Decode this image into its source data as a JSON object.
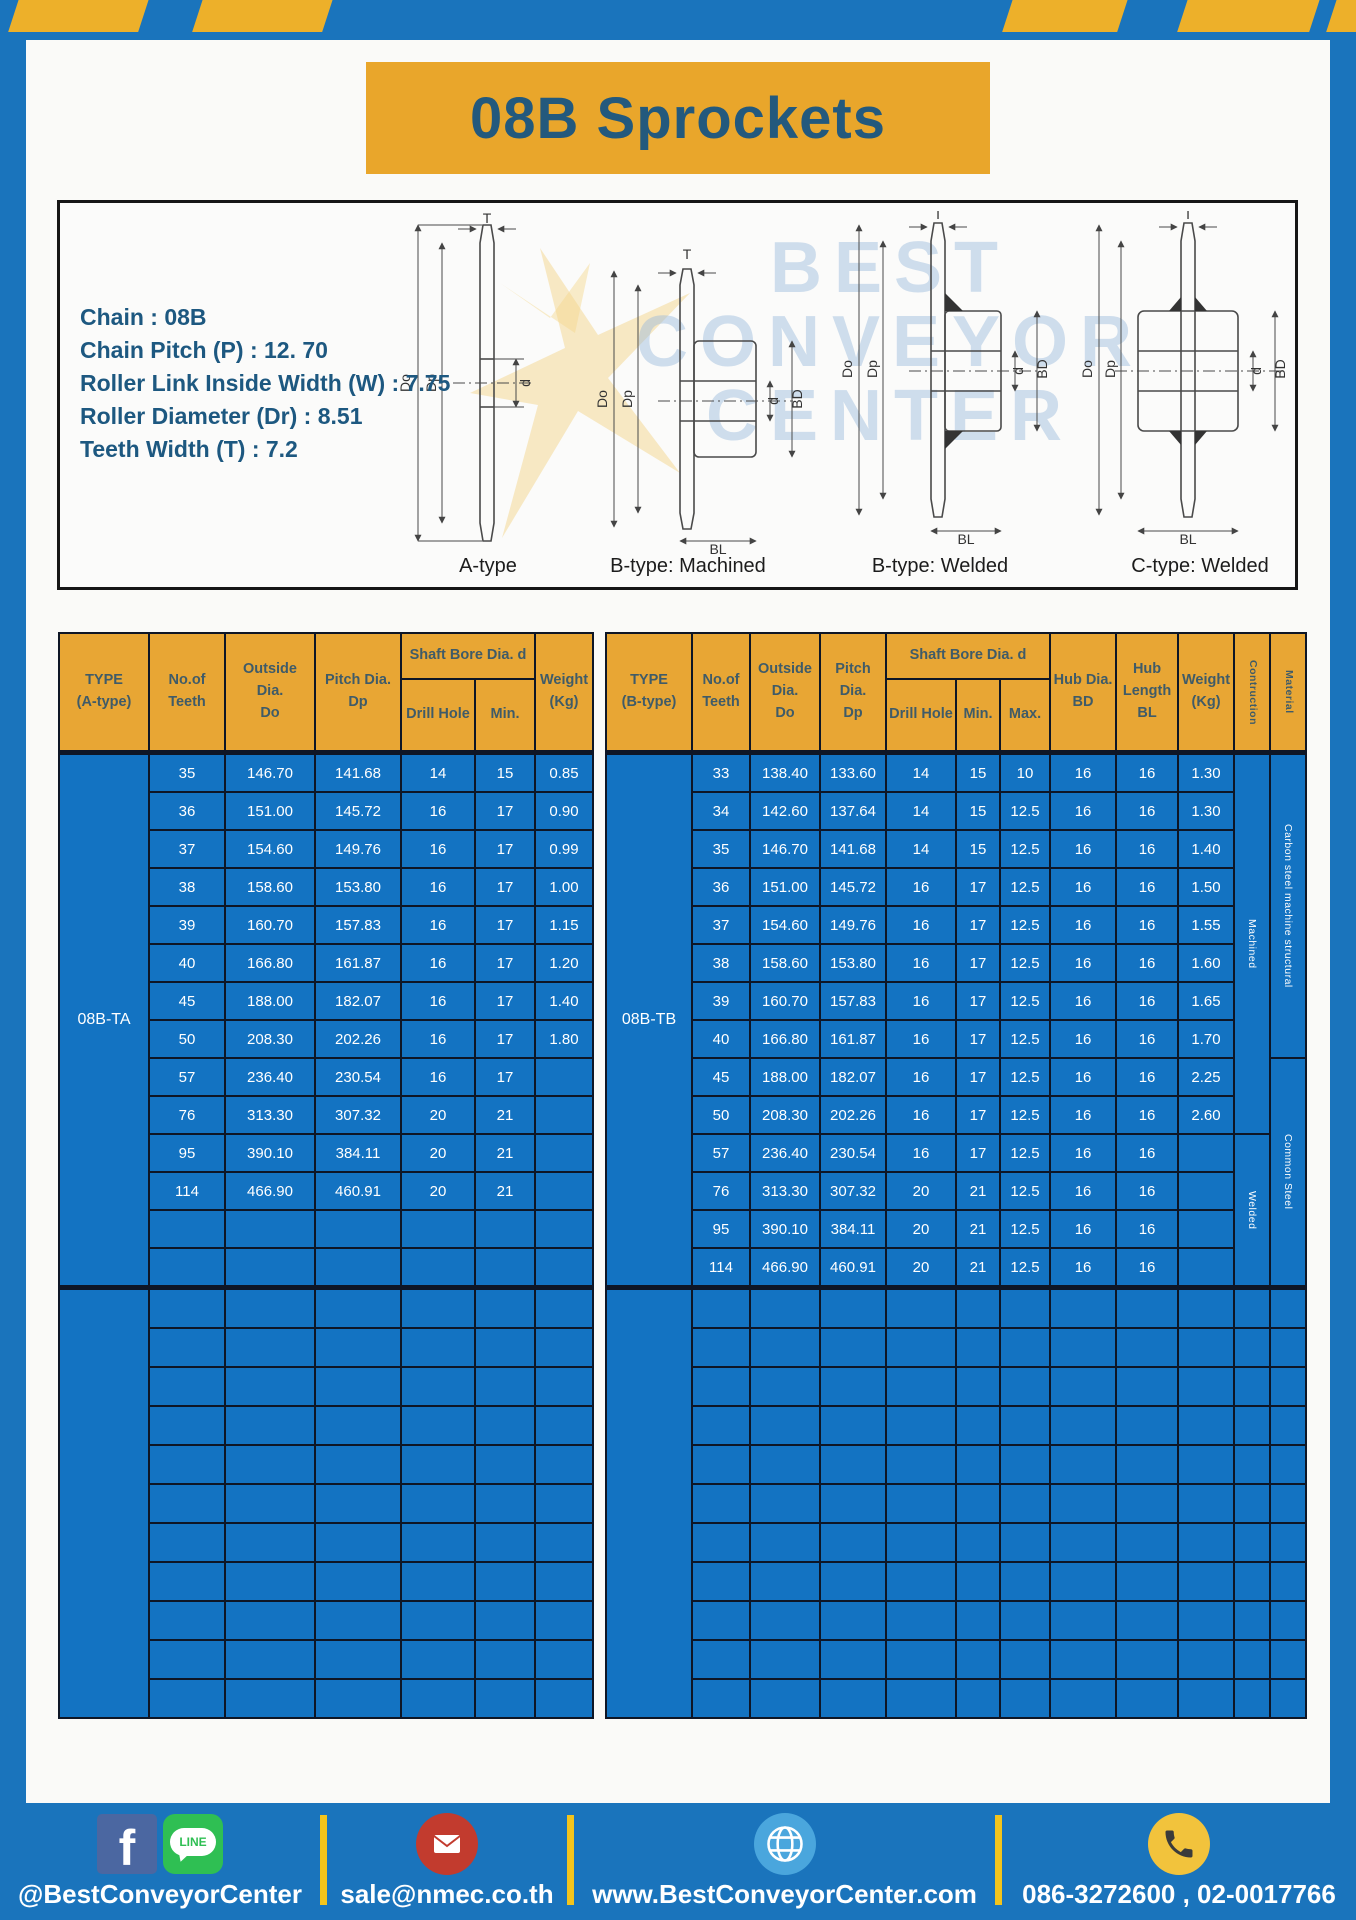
{
  "page": {
    "title": "08B Sprockets"
  },
  "colors": {
    "page_blue": "#1a74bc",
    "stripe_yellow": "#edb02a",
    "title_bg": "#e9a62b",
    "title_text": "#23597d",
    "table_header_bg": "#e8a634",
    "table_header_text": "#3f5b68",
    "table_cell_blue": "#1373c2",
    "table_border": "#0e1626",
    "footer_text": "#ffffff"
  },
  "specs": {
    "lines": [
      "Chain : 08B",
      "Chain Pitch (P) : 12. 70",
      "Roller Link Inside Width (W) : 7.75",
      "Roller Diameter (Dr) : 8.51",
      "Teeth Width (T) : 7.2"
    ]
  },
  "watermark": {
    "line1": "BEST",
    "line2": "CONVEYOR",
    "line3": "CENTER"
  },
  "dims": {
    "T": "T",
    "Do": "Do",
    "Dp": "Dp",
    "d": "d",
    "BD": "BD",
    "BL": "BL"
  },
  "diagrams": {
    "captions": [
      "A-type",
      "B-type: Machined",
      "B-type: Welded",
      "C-type: Welded"
    ]
  },
  "table_a": {
    "headers": {
      "type": "TYPE\n(A-type)",
      "teeth": "No.of\nTeeth",
      "outside": "Outside\nDia.\nDo",
      "pitch": "Pitch Dia.\nDp",
      "shaft": "Shaft Bore Dia. d",
      "drill": "Drill Hole",
      "min": "Min.",
      "weight": "Weight\n(Kg)"
    },
    "type_label": "08B-TA",
    "rows": [
      [
        "35",
        "146.70",
        "141.68",
        "14",
        "15",
        "0.85"
      ],
      [
        "36",
        "151.00",
        "145.72",
        "16",
        "17",
        "0.90"
      ],
      [
        "37",
        "154.60",
        "149.76",
        "16",
        "17",
        "0.99"
      ],
      [
        "38",
        "158.60",
        "153.80",
        "16",
        "17",
        "1.00"
      ],
      [
        "39",
        "160.70",
        "157.83",
        "16",
        "17",
        "1.15"
      ],
      [
        "40",
        "166.80",
        "161.87",
        "16",
        "17",
        "1.20"
      ],
      [
        "45",
        "188.00",
        "182.07",
        "16",
        "17",
        "1.40"
      ],
      [
        "50",
        "208.30",
        "202.26",
        "16",
        "17",
        "1.80"
      ],
      [
        "57",
        "236.40",
        "230.54",
        "16",
        "17",
        ""
      ],
      [
        "76",
        "313.30",
        "307.32",
        "20",
        "21",
        ""
      ],
      [
        "95",
        "390.10",
        "384.11",
        "20",
        "21",
        ""
      ],
      [
        "114",
        "466.90",
        "460.91",
        "20",
        "21",
        ""
      ],
      [
        "",
        "",
        "",
        "",
        "",
        ""
      ],
      [
        "",
        "",
        "",
        "",
        "",
        ""
      ]
    ],
    "empty_rows": 11
  },
  "table_b": {
    "headers": {
      "type": "TYPE\n(B-type)",
      "teeth": "No.of\nTeeth",
      "outside": "Outside\nDia.\nDo",
      "pitch": "Pitch Dia.\nDp",
      "shaft": "Shaft Bore Dia. d",
      "drill": "Drill Hole",
      "min": "Min.",
      "max": "Max.",
      "hub_dia": "Hub Dia.\nBD",
      "hub_len": "Hub\nLength\nBL",
      "weight": "Weight\n(Kg)",
      "construction": "Contruction",
      "material": "Material"
    },
    "type_label": "08B-TB",
    "rows": [
      [
        "33",
        "138.40",
        "133.60",
        "14",
        "15",
        "10",
        "16",
        "16",
        "1.30"
      ],
      [
        "34",
        "142.60",
        "137.64",
        "14",
        "15",
        "12.5",
        "16",
        "16",
        "1.30"
      ],
      [
        "35",
        "146.70",
        "141.68",
        "14",
        "15",
        "12.5",
        "16",
        "16",
        "1.40"
      ],
      [
        "36",
        "151.00",
        "145.72",
        "16",
        "17",
        "12.5",
        "16",
        "16",
        "1.50"
      ],
      [
        "37",
        "154.60",
        "149.76",
        "16",
        "17",
        "12.5",
        "16",
        "16",
        "1.55"
      ],
      [
        "38",
        "158.60",
        "153.80",
        "16",
        "17",
        "12.5",
        "16",
        "16",
        "1.60"
      ],
      [
        "39",
        "160.70",
        "157.83",
        "16",
        "17",
        "12.5",
        "16",
        "16",
        "1.65"
      ],
      [
        "40",
        "166.80",
        "161.87",
        "16",
        "17",
        "12.5",
        "16",
        "16",
        "1.70"
      ],
      [
        "45",
        "188.00",
        "182.07",
        "16",
        "17",
        "12.5",
        "16",
        "16",
        "2.25"
      ],
      [
        "50",
        "208.30",
        "202.26",
        "16",
        "17",
        "12.5",
        "16",
        "16",
        "2.60"
      ],
      [
        "57",
        "236.40",
        "230.54",
        "16",
        "17",
        "12.5",
        "16",
        "16",
        ""
      ],
      [
        "76",
        "313.30",
        "307.32",
        "20",
        "21",
        "12.5",
        "16",
        "16",
        ""
      ],
      [
        "95",
        "390.10",
        "384.11",
        "20",
        "21",
        "12.5",
        "16",
        "16",
        ""
      ],
      [
        "114",
        "466.90",
        "460.91",
        "20",
        "21",
        "12.5",
        "16",
        "16",
        ""
      ]
    ],
    "construction_spans": [
      {
        "label": "Machined",
        "span": 10
      },
      {
        "label": "Welded",
        "span": 4
      }
    ],
    "material_spans": [
      {
        "label": "Carbon steel  machine structural",
        "span": 8
      },
      {
        "label": "Common Steel",
        "span": 6
      }
    ],
    "empty_rows": 11
  },
  "footer": {
    "social_label": "@BestConveyorCenter",
    "line_text": "LINE",
    "facebook_letter": "f",
    "email_label": "sale@nmec.co.th",
    "web_label": "www.BestConveyorCenter.com",
    "phone_label": "086-3272600 , 02-0017766"
  }
}
